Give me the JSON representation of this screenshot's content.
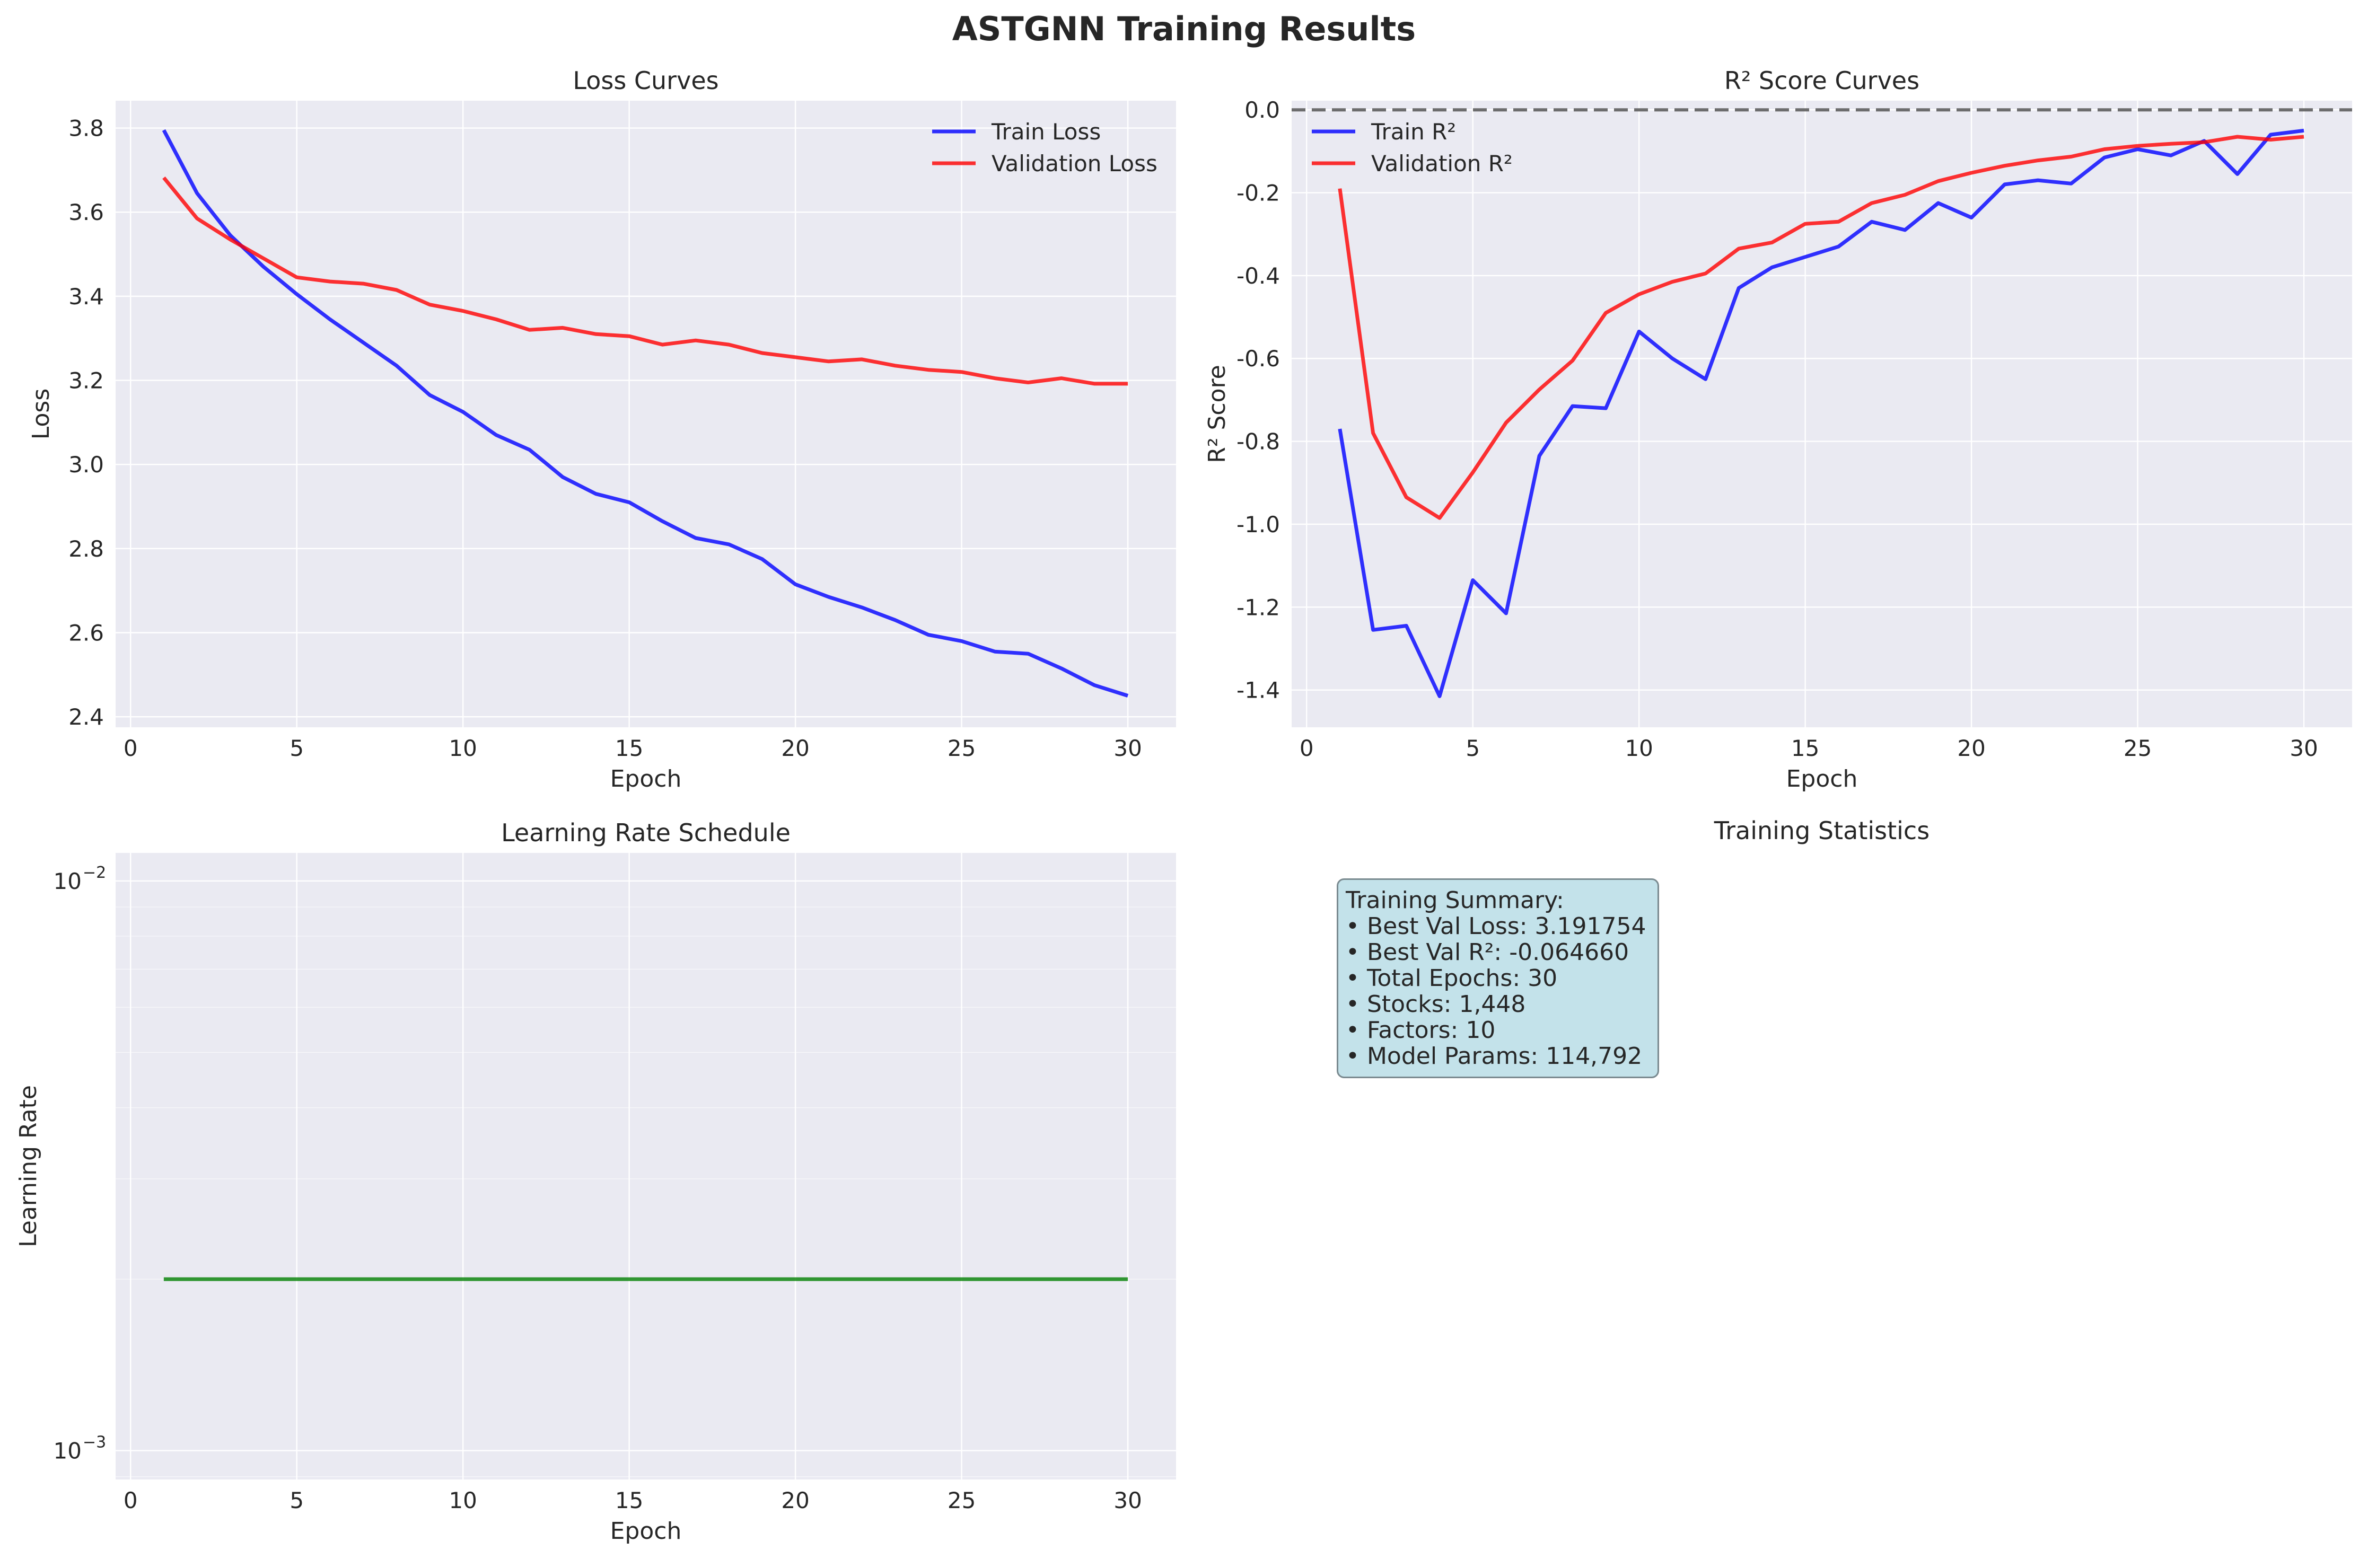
{
  "figure_title": "ASTGNN Training Results",
  "colors": {
    "panel_bg": "#eaeaf2",
    "train": "#0000ff",
    "validation": "#ff0000",
    "lr": "#008000",
    "reference_line": "#555555",
    "stats_bg": "#add8e6"
  },
  "stats": {
    "title": "Training Summary:",
    "lines": [
      "• Best Val Loss: 3.191754",
      "• Best Val R²: -0.064660",
      "• Total Epochs: 30",
      "• Stocks: 1,448",
      "• Factors: 10",
      "• Model Params: 114,792"
    ]
  },
  "chart_data": [
    {
      "id": "loss",
      "type": "line",
      "title": "Loss Curves",
      "xlabel": "Epoch",
      "ylabel": "Loss",
      "xlim": [
        -0.45,
        31.45
      ],
      "ylim": [
        2.375,
        3.865
      ],
      "xticks": [
        0,
        5,
        10,
        15,
        20,
        25,
        30
      ],
      "yticks": [
        2.4,
        2.6,
        2.8,
        3.0,
        3.2,
        3.4,
        3.6,
        3.8
      ],
      "ytick_labels": [
        "2.4",
        "2.6",
        "2.8",
        "3.0",
        "3.2",
        "3.4",
        "3.6",
        "3.8"
      ],
      "grid": true,
      "legend": "top-right",
      "x": [
        1,
        2,
        3,
        4,
        5,
        6,
        7,
        8,
        9,
        10,
        11,
        12,
        13,
        14,
        15,
        16,
        17,
        18,
        19,
        20,
        21,
        22,
        23,
        24,
        25,
        26,
        27,
        28,
        29,
        30
      ],
      "series": [
        {
          "name": "Train Loss",
          "color": "#0000ff",
          "values": [
            3.795,
            3.645,
            3.545,
            3.47,
            3.405,
            3.345,
            3.29,
            3.235,
            3.165,
            3.125,
            3.07,
            3.035,
            2.97,
            2.93,
            2.91,
            2.865,
            2.825,
            2.81,
            2.775,
            2.715,
            2.685,
            2.66,
            2.63,
            2.595,
            2.58,
            2.555,
            2.55,
            2.515,
            2.475,
            2.45
          ]
        },
        {
          "name": "Validation Loss",
          "color": "#ff0000",
          "values": [
            3.682,
            3.585,
            3.535,
            3.49,
            3.445,
            3.435,
            3.43,
            3.415,
            3.38,
            3.365,
            3.345,
            3.32,
            3.325,
            3.31,
            3.305,
            3.285,
            3.295,
            3.285,
            3.265,
            3.255,
            3.245,
            3.25,
            3.235,
            3.225,
            3.22,
            3.205,
            3.195,
            3.205,
            3.192,
            3.192
          ]
        }
      ]
    },
    {
      "id": "r2",
      "type": "line",
      "title": "R² Score Curves",
      "xlabel": "Epoch",
      "ylabel": "R² Score",
      "xlim": [
        -0.45,
        31.45
      ],
      "ylim": [
        -1.49,
        0.022
      ],
      "xticks": [
        0,
        5,
        10,
        15,
        20,
        25,
        30
      ],
      "yticks": [
        0.0,
        -0.2,
        -0.4,
        -0.6,
        -0.8,
        -1.0,
        -1.2,
        -1.4
      ],
      "ytick_labels": [
        "0.0",
        "-0.2",
        "-0.4",
        "-0.6",
        "-0.8",
        "-1.0",
        "-1.2",
        "-1.4"
      ],
      "grid": true,
      "legend": "top-left",
      "reference_line_y": 0,
      "x": [
        1,
        2,
        3,
        4,
        5,
        6,
        7,
        8,
        9,
        10,
        11,
        12,
        13,
        14,
        15,
        16,
        17,
        18,
        19,
        20,
        21,
        22,
        23,
        24,
        25,
        26,
        27,
        28,
        29,
        30
      ],
      "series": [
        {
          "name": "Train R²",
          "color": "#0000ff",
          "values": [
            -0.77,
            -1.255,
            -1.245,
            -1.415,
            -1.135,
            -1.215,
            -0.835,
            -0.715,
            -0.72,
            -0.535,
            -0.6,
            -0.65,
            -0.43,
            -0.38,
            -0.355,
            -0.33,
            -0.27,
            -0.29,
            -0.225,
            -0.26,
            -0.18,
            -0.17,
            -0.178,
            -0.115,
            -0.095,
            -0.11,
            -0.075,
            -0.155,
            -0.06,
            -0.05
          ]
        },
        {
          "name": "Validation R²",
          "color": "#ff0000",
          "values": [
            -0.19,
            -0.78,
            -0.935,
            -0.985,
            -0.875,
            -0.755,
            -0.675,
            -0.605,
            -0.49,
            -0.445,
            -0.415,
            -0.395,
            -0.335,
            -0.32,
            -0.275,
            -0.27,
            -0.225,
            -0.205,
            -0.172,
            -0.152,
            -0.135,
            -0.122,
            -0.113,
            -0.095,
            -0.087,
            -0.082,
            -0.078,
            -0.065,
            -0.072,
            -0.065
          ]
        }
      ]
    },
    {
      "id": "lr",
      "type": "line",
      "title": "Learning Rate Schedule",
      "xlabel": "Epoch",
      "ylabel": "Learning Rate",
      "xlim": [
        -0.45,
        31.45
      ],
      "ylim": [
        0.00089,
        0.0112
      ],
      "yscale": "log",
      "xticks": [
        0,
        5,
        10,
        15,
        20,
        25,
        30
      ],
      "yticks": [
        0.001,
        0.01
      ],
      "ytick_labels": [
        {
          "base": "10",
          "exp": "−3"
        },
        {
          "base": "10",
          "exp": "−2"
        }
      ],
      "grid": true,
      "x": [
        1,
        2,
        3,
        4,
        5,
        6,
        7,
        8,
        9,
        10,
        11,
        12,
        13,
        14,
        15,
        16,
        17,
        18,
        19,
        20,
        21,
        22,
        23,
        24,
        25,
        26,
        27,
        28,
        29,
        30
      ],
      "series": [
        {
          "color": "#008000",
          "values": [
            0.002,
            0.002,
            0.002,
            0.002,
            0.002,
            0.002,
            0.002,
            0.002,
            0.002,
            0.002,
            0.002,
            0.002,
            0.002,
            0.002,
            0.002,
            0.002,
            0.002,
            0.002,
            0.002,
            0.002,
            0.002,
            0.002,
            0.002,
            0.002,
            0.002,
            0.002,
            0.002,
            0.002,
            0.002,
            0.002
          ]
        }
      ]
    }
  ],
  "stats_panel_title": "Training Statistics"
}
